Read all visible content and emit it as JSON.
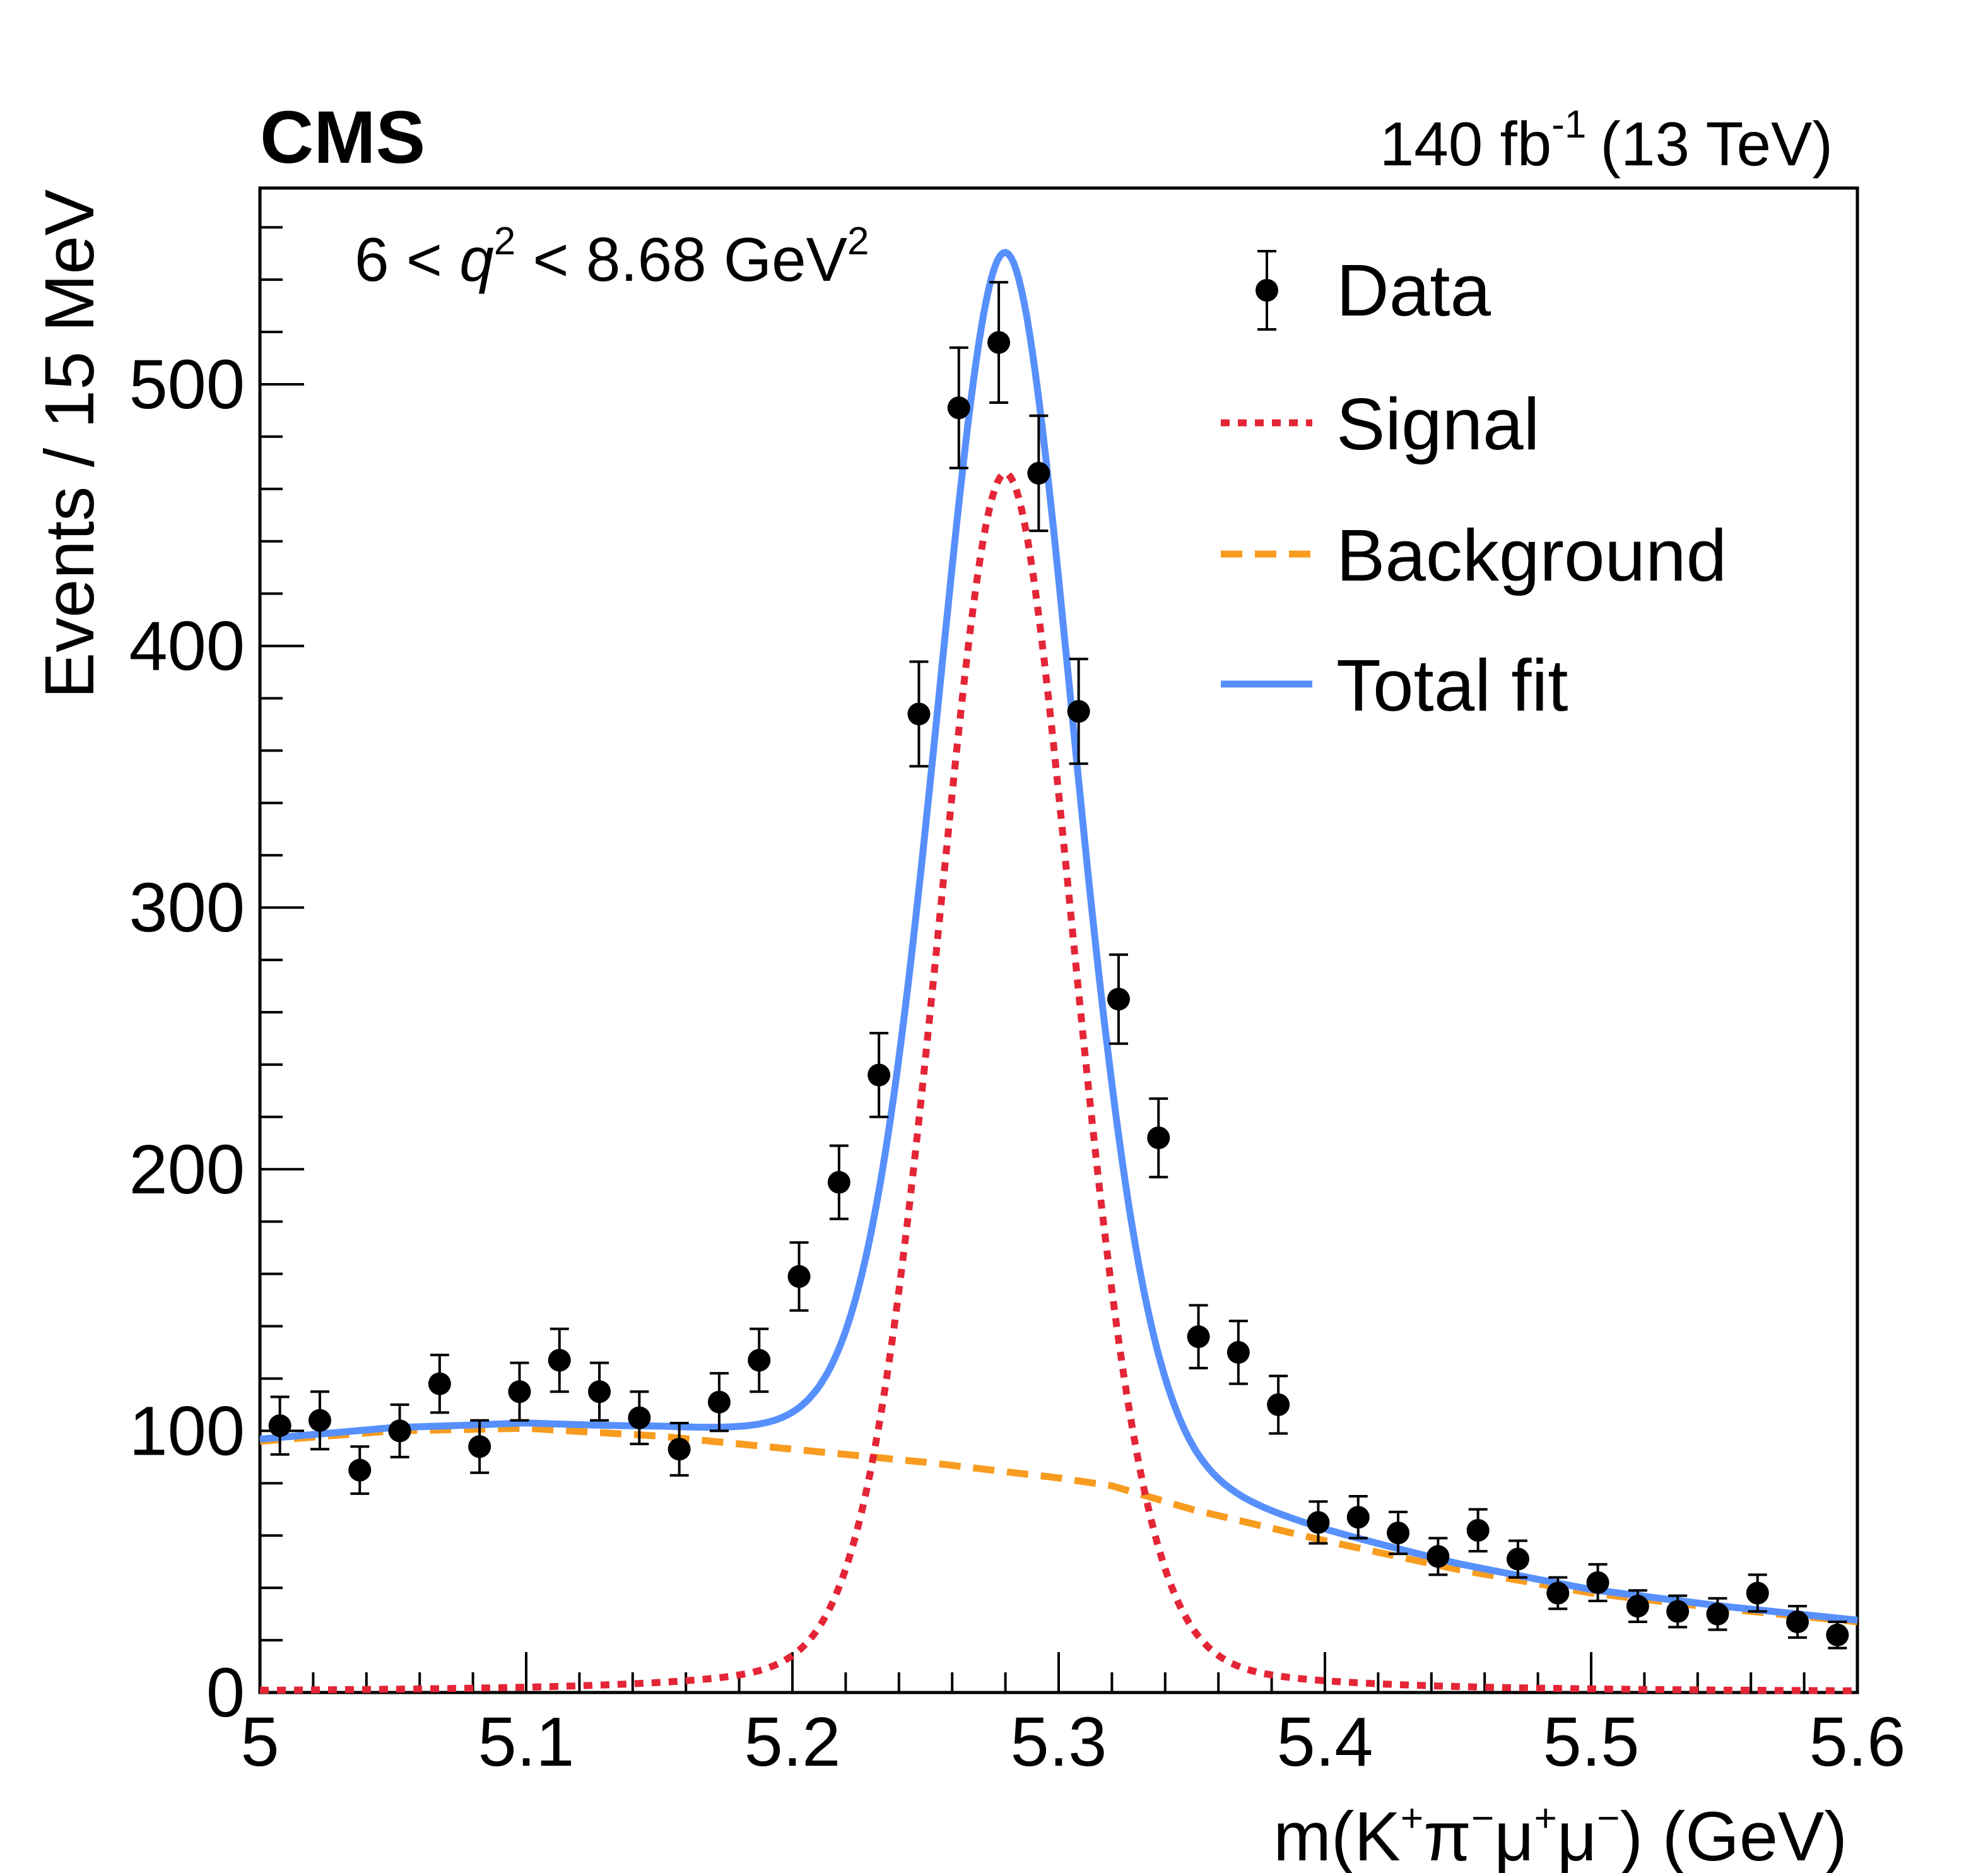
{
  "header": {
    "experiment": "CMS",
    "lumi_value": "140 fb",
    "lumi_exp": "-1",
    "lumi_energy": "(13 TeV)"
  },
  "cut": {
    "prefix": "6 < ",
    "var": "q",
    "var_exp": "2",
    "middle": " < 8.68 GeV",
    "unit_exp": "2"
  },
  "chart_data": {
    "type": "scatter",
    "title": "",
    "xlabel_parts": {
      "m": "m(K",
      "plus1": "+",
      "pi": "π",
      "minus1": "−",
      "mu1": "μ",
      "plus2": "+",
      "mu2": "μ",
      "minus2": "−",
      "close": ") (GeV)"
    },
    "ylabel": "Events / 15 MeV",
    "xlim": [
      5.0,
      5.6
    ],
    "ylim": [
      0,
      575
    ],
    "x_ticks": [
      "5",
      "5.1",
      "5.2",
      "5.3",
      "5.4",
      "5.5",
      "5.6"
    ],
    "y_ticks": [
      "0",
      "100",
      "200",
      "300",
      "400",
      "500"
    ],
    "colors": {
      "data": "#000000",
      "signal": "#e42536",
      "background": "#f89c20",
      "total": "#5790fc"
    },
    "legend": {
      "position": "top-right",
      "entries": [
        "Data",
        "Signal",
        "Background",
        "Total fit"
      ]
    },
    "data": {
      "x": [
        5.0075,
        5.0225,
        5.0375,
        5.0525,
        5.0675,
        5.0825,
        5.0975,
        5.1125,
        5.1275,
        5.1425,
        5.1575,
        5.1725,
        5.1875,
        5.2025,
        5.2175,
        5.2325,
        5.2475,
        5.2625,
        5.2775,
        5.2925,
        5.3075,
        5.3225,
        5.3375,
        5.3525,
        5.3675,
        5.3825,
        5.3975,
        5.4125,
        5.4275,
        5.4425,
        5.4575,
        5.4725,
        5.4875,
        5.5025,
        5.5175,
        5.5325,
        5.5475,
        5.5625,
        5.5775,
        5.5925
      ],
      "y": [
        102,
        104,
        85,
        100,
        118,
        94,
        115,
        127,
        115,
        105,
        93,
        111,
        127,
        159,
        195,
        236,
        374,
        491,
        516,
        466,
        375,
        265,
        212,
        136,
        130,
        110,
        65,
        67,
        61,
        52,
        62,
        51,
        38,
        42,
        33,
        31,
        30,
        38,
        27,
        22
      ],
      "yerr": [
        11,
        11,
        9,
        10,
        11,
        10,
        11,
        12,
        11,
        10,
        10,
        11,
        12,
        13,
        14,
        16,
        20,
        23,
        23,
        22,
        20,
        17,
        15,
        12,
        12,
        11,
        8,
        8,
        8,
        7,
        8,
        7,
        6,
        7,
        6,
        6,
        6,
        7,
        6,
        5
      ]
    },
    "signal_model": {
      "name": "Signal",
      "mean": 5.28,
      "peak": 466,
      "width": 0.027,
      "lorentz_weight": 0.2
    },
    "background_model": {
      "name": "Background",
      "x": [
        5.0,
        5.05,
        5.1,
        5.15,
        5.2,
        5.25,
        5.3,
        5.32,
        5.35,
        5.4,
        5.45,
        5.5,
        5.55,
        5.6
      ],
      "y": [
        96,
        100,
        101,
        98,
        93,
        88,
        82,
        79,
        70,
        58,
        47,
        38,
        32,
        27
      ]
    },
    "total_fit": {
      "name": "Total fit",
      "peak": 549
    }
  }
}
